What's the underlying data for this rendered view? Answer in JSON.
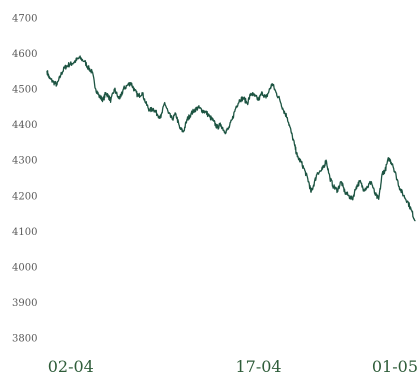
{
  "chart_data": {
    "type": "line",
    "title": "",
    "xlabel": "",
    "ylabel": "",
    "grid": false,
    "legend": "none",
    "line_color": "#1d5442",
    "tick_color": "#5a5a5a",
    "xtick_color": "#2f5d3a",
    "ylim": [
      3750,
      4720
    ],
    "yticks": [
      3800,
      3900,
      4000,
      4100,
      4200,
      4300,
      4400,
      4500,
      4600,
      4700
    ],
    "x_range": [
      0,
      29.4
    ],
    "xticks": [
      {
        "label": "02-04",
        "x": 1.9
      },
      {
        "label": "17-04",
        "x": 16.9
      },
      {
        "label": "01-05",
        "x": 28.6
      }
    ],
    "series": [
      {
        "x": [
          0.0,
          0.2,
          0.5,
          0.8,
          1.1,
          1.4,
          1.7,
          2.0,
          2.3,
          2.6,
          3.0,
          3.3,
          3.6,
          3.9,
          4.2,
          4.5,
          4.7,
          4.9,
          5.1,
          5.4,
          5.7,
          5.9,
          6.1,
          6.4,
          6.7,
          7.0,
          7.3,
          7.6,
          7.9,
          8.2,
          8.5,
          8.8,
          9.1,
          9.4,
          9.7,
          10.0,
          10.3,
          10.6,
          10.9,
          11.2,
          11.5,
          11.8,
          12.1,
          12.4,
          12.7,
          13.0,
          13.3,
          13.6,
          13.9,
          14.2,
          14.5,
          14.8,
          15.1,
          15.4,
          15.7,
          16.0,
          16.3,
          16.6,
          16.9,
          17.2,
          17.5,
          17.8,
          18.0,
          18.3,
          18.6,
          18.9,
          19.2,
          19.5,
          19.8,
          20.0,
          20.3,
          20.6,
          20.9,
          21.1,
          21.3,
          21.6,
          21.9,
          22.1,
          22.3,
          22.6,
          22.9,
          23.2,
          23.5,
          23.8,
          24.1,
          24.4,
          24.7,
          25.0,
          25.3,
          25.6,
          25.9,
          26.2,
          26.5,
          26.8,
          27.0,
          27.3,
          27.6,
          27.9,
          28.2,
          28.5,
          28.8,
          29.1,
          29.4
        ],
        "values": [
          4550,
          4530,
          4520,
          4512,
          4540,
          4560,
          4568,
          4572,
          4580,
          4588,
          4578,
          4560,
          4548,
          4500,
          4478,
          4470,
          4490,
          4480,
          4468,
          4500,
          4475,
          4478,
          4500,
          4510,
          4518,
          4496,
          4480,
          4490,
          4460,
          4440,
          4445,
          4430,
          4420,
          4462,
          4432,
          4415,
          4430,
          4390,
          4380,
          4415,
          4430,
          4442,
          4448,
          4440,
          4435,
          4422,
          4410,
          4392,
          4400,
          4380,
          4388,
          4415,
          4450,
          4470,
          4475,
          4460,
          4488,
          4480,
          4470,
          4490,
          4475,
          4500,
          4515,
          4490,
          4470,
          4440,
          4420,
          4380,
          4340,
          4310,
          4295,
          4270,
          4240,
          4210,
          4230,
          4265,
          4270,
          4280,
          4300,
          4250,
          4225,
          4215,
          4240,
          4210,
          4200,
          4190,
          4225,
          4240,
          4218,
          4225,
          4240,
          4205,
          4190,
          4265,
          4270,
          4305,
          4290,
          4255,
          4220,
          4200,
          4185,
          4160,
          4130
        ]
      }
    ]
  }
}
